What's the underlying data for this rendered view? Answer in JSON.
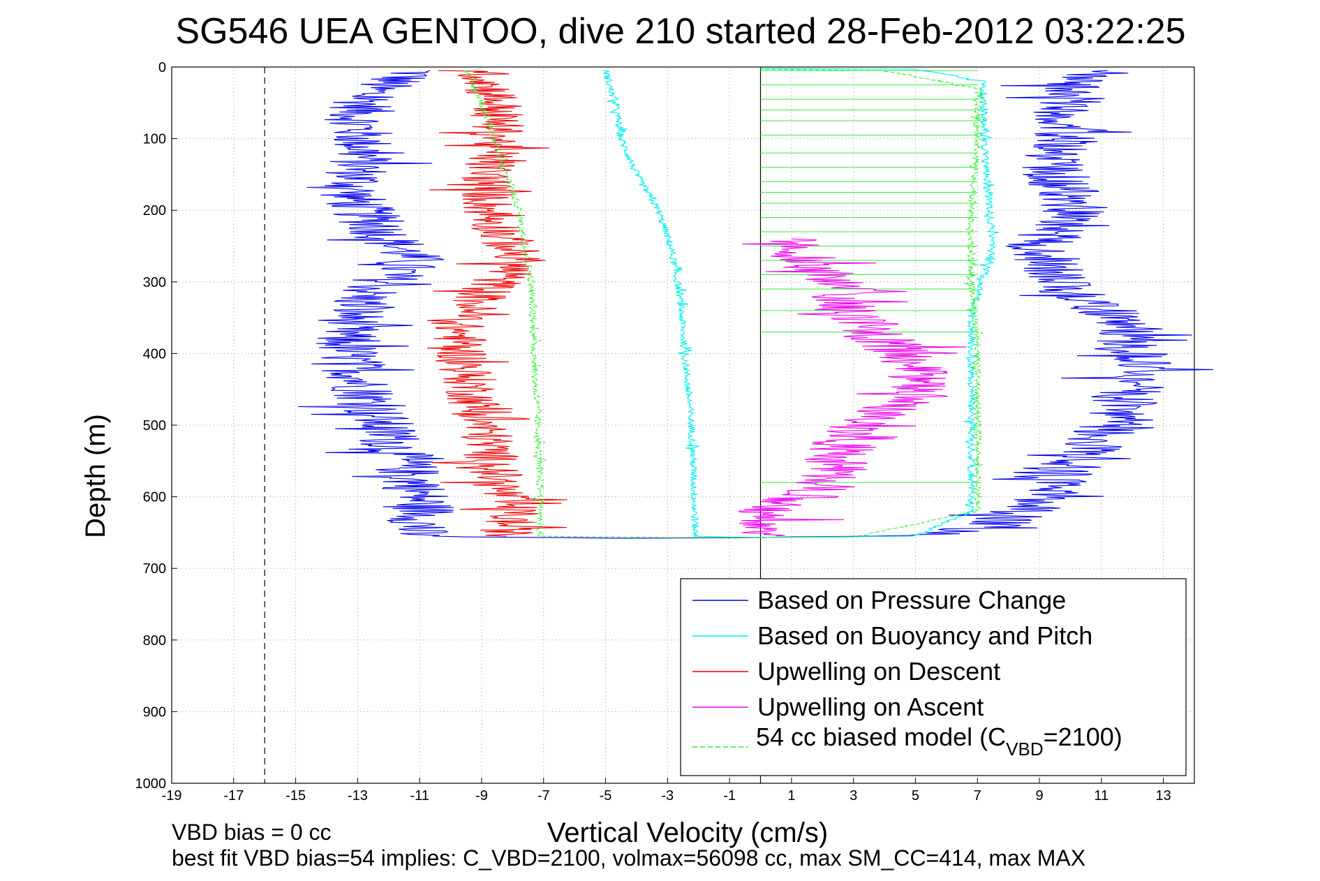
{
  "chart_data": {
    "type": "line",
    "title": "SG546 UEA GENTOO, dive 210 started 28-Feb-2012 03:22:25",
    "xlabel": "Vertical Velocity (cm/s)",
    "ylabel": "Depth (m)",
    "xlim": [
      -19,
      14
    ],
    "ylim": [
      0,
      1000
    ],
    "y_reversed": true,
    "grid": true,
    "grid_style": "dotted",
    "x_ticks": [
      -19,
      -17,
      -15,
      -13,
      -11,
      -9,
      -7,
      -5,
      -3,
      -1,
      1,
      3,
      5,
      7,
      9,
      11,
      13
    ],
    "y_ticks": [
      0,
      100,
      200,
      300,
      400,
      500,
      600,
      700,
      800,
      900,
      1000
    ],
    "vertical_lines": [
      {
        "x": -16,
        "style": "dashed",
        "color": "#000000"
      },
      {
        "x": 0,
        "style": "solid",
        "color": "#000000"
      }
    ],
    "legend_location": "lower-right",
    "series": [
      {
        "name": "Based on Pressure Change",
        "color": "#0000ee",
        "style": "solid",
        "noise": 1.1,
        "points": [
          [
            -11,
            5
          ],
          [
            -12.5,
            30
          ],
          [
            -13,
            70
          ],
          [
            -12.8,
            120
          ],
          [
            -13.2,
            180
          ],
          [
            -12.5,
            220
          ],
          [
            -11.2,
            270
          ],
          [
            -12.8,
            320
          ],
          [
            -13.5,
            380
          ],
          [
            -13,
            430
          ],
          [
            -12.5,
            480
          ],
          [
            -11.8,
            530
          ],
          [
            -11.2,
            580
          ],
          [
            -10.8,
            620
          ],
          [
            -11.2,
            655
          ],
          [
            -4,
            658
          ],
          [
            3,
            655
          ],
          [
            5,
            654
          ],
          [
            7.5,
            640
          ],
          [
            9,
            610
          ],
          [
            10,
            560
          ],
          [
            11.2,
            500
          ],
          [
            12.3,
            420
          ],
          [
            11.5,
            350
          ],
          [
            9.5,
            300
          ],
          [
            9,
            250
          ],
          [
            10.2,
            200
          ],
          [
            9.5,
            150
          ],
          [
            9.8,
            80
          ],
          [
            10.2,
            20
          ],
          [
            11.2,
            5
          ]
        ]
      },
      {
        "name": "Based on Buoyancy and Pitch",
        "color": "#00eeee",
        "style": "solid",
        "noise": 0.12,
        "points": [
          [
            -5,
            5
          ],
          [
            -4.7,
            50
          ],
          [
            -4.5,
            100
          ],
          [
            -4,
            150
          ],
          [
            -3.3,
            200
          ],
          [
            -2.9,
            250
          ],
          [
            -2.6,
            320
          ],
          [
            -2.4,
            420
          ],
          [
            -2.2,
            520
          ],
          [
            -2.1,
            655
          ],
          [
            0,
            657
          ],
          [
            5,
            655
          ],
          [
            6.8,
            620
          ],
          [
            6.8,
            500
          ],
          [
            6.8,
            350
          ],
          [
            7.5,
            250
          ],
          [
            7.2,
            100
          ],
          [
            7.2,
            20
          ],
          [
            5,
            3
          ],
          [
            0,
            2
          ]
        ]
      },
      {
        "name": "Upwelling on Descent",
        "color": "#ee0000",
        "style": "solid",
        "noise": 0.9,
        "points": [
          [
            -9,
            5
          ],
          [
            -8.5,
            50
          ],
          [
            -8.5,
            100
          ],
          [
            -8.8,
            150
          ],
          [
            -8.8,
            200
          ],
          [
            -7.8,
            270
          ],
          [
            -9,
            320
          ],
          [
            -9.8,
            360
          ],
          [
            -9.5,
            420
          ],
          [
            -9.2,
            470
          ],
          [
            -8.8,
            520
          ],
          [
            -8.5,
            580
          ],
          [
            -8,
            620
          ],
          [
            -8.2,
            655
          ]
        ]
      },
      {
        "name": "Upwelling on Ascent",
        "color": "#ee00ee",
        "style": "solid",
        "noise": 1.1,
        "points": [
          [
            0.5,
            655
          ],
          [
            0.3,
            620
          ],
          [
            2,
            590
          ],
          [
            2.5,
            550
          ],
          [
            3,
            500
          ],
          [
            5,
            460
          ],
          [
            5,
            420
          ],
          [
            4,
            380
          ],
          [
            3,
            340
          ],
          [
            2.5,
            300
          ],
          [
            1.5,
            270
          ],
          [
            1,
            240
          ]
        ]
      },
      {
        "name": "54 cc biased model (C_VBD=2100)",
        "color": "#33ee33",
        "style": "dashed",
        "noise": 0.12,
        "points": [
          [
            -9.5,
            5
          ],
          [
            -9,
            50
          ],
          [
            -8.6,
            100
          ],
          [
            -8.2,
            150
          ],
          [
            -7.8,
            200
          ],
          [
            -7.6,
            250
          ],
          [
            -7.4,
            300
          ],
          [
            -7.3,
            400
          ],
          [
            -7.2,
            500
          ],
          [
            -7.1,
            600
          ],
          [
            -7.1,
            655
          ],
          [
            -3,
            657
          ],
          [
            3,
            656
          ],
          [
            7,
            620
          ],
          [
            7,
            500
          ],
          [
            7,
            400
          ],
          [
            6.8,
            300
          ],
          [
            6.8,
            200
          ],
          [
            7,
            100
          ],
          [
            7,
            30
          ],
          [
            4,
            5
          ],
          [
            0,
            3
          ]
        ]
      }
    ],
    "horizontal_streaks": [
      {
        "color": "#33ee33",
        "from": 0,
        "to": 7,
        "depths": [
          5,
          25,
          45,
          60,
          75,
          95,
          120,
          140,
          160,
          175,
          190,
          210,
          230,
          250,
          270,
          290,
          310,
          340,
          370,
          580
        ]
      }
    ]
  },
  "legend": {
    "entries": [
      {
        "label": "Based on Pressure Change",
        "color": "#0000ee",
        "style": "solid"
      },
      {
        "label": "Based on Buoyancy and Pitch",
        "color": "#00eeee",
        "style": "solid"
      },
      {
        "label": "Upwelling on Descent",
        "color": "#ee0000",
        "style": "solid"
      },
      {
        "label": "Upwelling on Ascent",
        "color": "#ee00ee",
        "style": "solid"
      },
      {
        "label_main": "54 cc biased model (C",
        "label_sub": "VBD",
        "label_tail": "=2100)",
        "color": "#33ee33",
        "style": "dashed"
      }
    ]
  },
  "footer": {
    "line1": "VBD bias = 0 cc",
    "line2": "best fit VBD bias=54 implies: C_VBD=2100, volmax=56098 cc, max SM_CC=414, max MAX"
  }
}
